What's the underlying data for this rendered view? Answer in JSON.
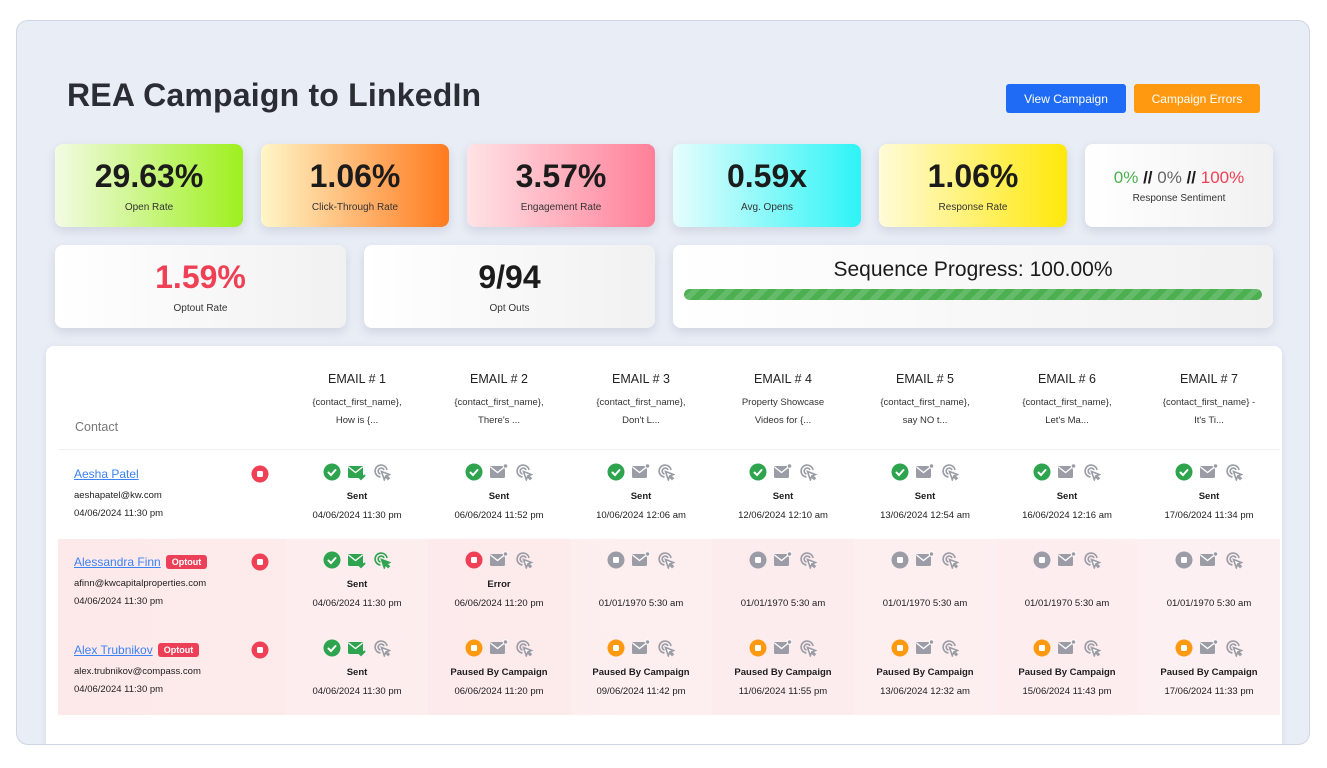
{
  "header": {
    "title": "REA Campaign to LinkedIn",
    "view_campaign": "View Campaign",
    "campaign_errors": "Campaign Errors"
  },
  "colors": {
    "primary": "#1f6bf5",
    "warning": "#ff990f",
    "success": "#2ea44f",
    "danger": "#ef4056",
    "muted": "#9b9ca5"
  },
  "stats": {
    "open_rate": {
      "value": "29.63%",
      "label": "Open Rate"
    },
    "ctr": {
      "value": "1.06%",
      "label": "Click-Through Rate"
    },
    "engagement": {
      "value": "3.57%",
      "label": "Engagement Rate"
    },
    "avg_opens": {
      "value": "0.59x",
      "label": "Avg. Opens"
    },
    "response_rate": {
      "value": "1.06%",
      "label": "Response Rate"
    },
    "sentiment": {
      "positive": "0%",
      "neutral": "0%",
      "negative": "100%",
      "sep": "//",
      "label": "Response Sentiment"
    },
    "optout_rate": {
      "value": "1.59%",
      "label": "Optout Rate"
    },
    "opt_outs": {
      "value": "9/94",
      "label": "Opt Outs"
    },
    "sequence": {
      "label": "Sequence Progress: 100.00%",
      "progress_percent": 100
    }
  },
  "table": {
    "contact_header": "Contact",
    "emails": [
      {
        "name": "EMAIL # 1",
        "subject1": "{contact_first_name},",
        "subject2": "How is {..."
      },
      {
        "name": "EMAIL # 2",
        "subject1": "{contact_first_name},",
        "subject2": "There's ..."
      },
      {
        "name": "EMAIL # 3",
        "subject1": "{contact_first_name},",
        "subject2": "Don't L..."
      },
      {
        "name": "EMAIL # 4",
        "subject1": "Property Showcase",
        "subject2": "Videos for {..."
      },
      {
        "name": "EMAIL # 5",
        "subject1": "{contact_first_name},",
        "subject2": "say NO t..."
      },
      {
        "name": "EMAIL # 6",
        "subject1": "{contact_first_name},",
        "subject2": "Let's Ma..."
      },
      {
        "name": "EMAIL # 7",
        "subject1": "{contact_first_name} -",
        "subject2": "It's Ti..."
      }
    ],
    "rows": [
      {
        "name": "Aesha Patel",
        "email": "aeshapatel@kw.com",
        "date": "04/06/2024 11:30 pm",
        "badge": null,
        "cells": [
          {
            "state": "sent",
            "opened": true,
            "clicked": false,
            "status": "Sent",
            "date": "04/06/2024 11:30 pm"
          },
          {
            "state": "sent",
            "opened": false,
            "clicked": false,
            "status": "Sent",
            "date": "06/06/2024 11:52 pm"
          },
          {
            "state": "sent",
            "opened": false,
            "clicked": false,
            "status": "Sent",
            "date": "10/06/2024 12:06 am"
          },
          {
            "state": "sent",
            "opened": false,
            "clicked": false,
            "status": "Sent",
            "date": "12/06/2024 12:10 am"
          },
          {
            "state": "sent",
            "opened": false,
            "clicked": false,
            "status": "Sent",
            "date": "13/06/2024 12:54 am"
          },
          {
            "state": "sent",
            "opened": false,
            "clicked": false,
            "status": "Sent",
            "date": "16/06/2024 12:16 am"
          },
          {
            "state": "sent",
            "opened": false,
            "clicked": false,
            "status": "Sent",
            "date": "17/06/2024 11:34 pm"
          }
        ]
      },
      {
        "name": "Alessandra Finn",
        "email": "afinn@kwcapitalproperties.com",
        "date": "04/06/2024 11:30 pm",
        "badge": "Optout",
        "cells": [
          {
            "state": "sent",
            "opened": true,
            "clicked": true,
            "status": "Sent",
            "date": "04/06/2024 11:30 pm"
          },
          {
            "state": "error",
            "opened": false,
            "clicked": false,
            "status": "Error",
            "date": "06/06/2024 11:20 pm"
          },
          {
            "state": "none",
            "opened": false,
            "clicked": false,
            "status": "",
            "date": "01/01/1970 5:30 am"
          },
          {
            "state": "none",
            "opened": false,
            "clicked": false,
            "status": "",
            "date": "01/01/1970 5:30 am"
          },
          {
            "state": "none",
            "opened": false,
            "clicked": false,
            "status": "",
            "date": "01/01/1970 5:30 am"
          },
          {
            "state": "none",
            "opened": false,
            "clicked": false,
            "status": "",
            "date": "01/01/1970 5:30 am"
          },
          {
            "state": "none",
            "opened": false,
            "clicked": false,
            "status": "",
            "date": "01/01/1970 5:30 am"
          }
        ]
      },
      {
        "name": "Alex Trubnikov",
        "email": "alex.trubnikov@compass.com",
        "date": "04/06/2024 11:30 pm",
        "badge": "Optout",
        "cells": [
          {
            "state": "sent",
            "opened": true,
            "clicked": false,
            "status": "Sent",
            "date": "04/06/2024 11:30 pm"
          },
          {
            "state": "paused",
            "opened": false,
            "clicked": false,
            "status": "Paused By Campaign",
            "date": "06/06/2024 11:20 pm"
          },
          {
            "state": "paused",
            "opened": false,
            "clicked": false,
            "status": "Paused By Campaign",
            "date": "09/06/2024 11:42 pm"
          },
          {
            "state": "paused",
            "opened": false,
            "clicked": false,
            "status": "Paused By Campaign",
            "date": "11/06/2024 11:55 pm"
          },
          {
            "state": "paused",
            "opened": false,
            "clicked": false,
            "status": "Paused By Campaign",
            "date": "13/06/2024 12:32 am"
          },
          {
            "state": "paused",
            "opened": false,
            "clicked": false,
            "status": "Paused By Campaign",
            "date": "15/06/2024 11:43 pm"
          },
          {
            "state": "paused",
            "opened": false,
            "clicked": false,
            "status": "Paused By Campaign",
            "date": "17/06/2024 11:33 pm"
          }
        ]
      }
    ]
  }
}
